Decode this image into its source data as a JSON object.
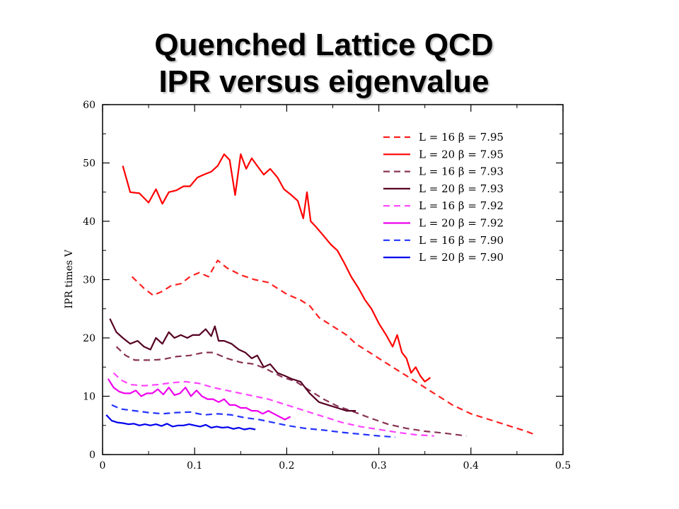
{
  "slide": {
    "title_line1": "Quenched Lattice QCD",
    "title_line2": "IPR versus eigenvalue"
  },
  "chart_data": {
    "type": "line",
    "title": "",
    "xlabel": "",
    "ylabel": "IPR times V",
    "xlim": [
      0,
      0.5
    ],
    "ylim": [
      0,
      60
    ],
    "xticks": [
      0,
      0.1,
      0.2,
      0.3,
      0.4,
      0.5
    ],
    "xtick_labels": [
      "0",
      "0.1",
      "0.2",
      "0.3",
      "0.4",
      "0.5"
    ],
    "yticks": [
      0,
      10,
      20,
      30,
      40,
      50,
      60
    ],
    "ytick_labels": [
      "0",
      "10",
      "20",
      "30",
      "40",
      "50",
      "60"
    ],
    "legend_position": "top-right",
    "series": [
      {
        "name": "L = 16  β = 7.95",
        "color": "#ff2020",
        "dashed": true,
        "x": [
          0.032,
          0.045,
          0.055,
          0.065,
          0.075,
          0.085,
          0.095,
          0.105,
          0.115,
          0.125,
          0.135,
          0.15,
          0.165,
          0.18,
          0.19,
          0.2,
          0.215,
          0.225,
          0.235,
          0.25,
          0.265,
          0.275,
          0.29,
          0.3,
          0.315,
          0.33,
          0.345,
          0.36,
          0.38,
          0.4,
          0.42,
          0.44,
          0.46,
          0.468
        ],
        "y": [
          30.5,
          28.5,
          27.3,
          28,
          29,
          29.3,
          30.5,
          31.2,
          30.5,
          33.3,
          32,
          30.8,
          30,
          29.5,
          28.5,
          27.5,
          26.5,
          25.5,
          23.5,
          22,
          20.5,
          19,
          17.5,
          16.5,
          15,
          13.5,
          12,
          10.5,
          8.5,
          7,
          6,
          5,
          4,
          3.5
        ]
      },
      {
        "name": "L = 20  β = 7.95",
        "color": "#ff0000",
        "dashed": false,
        "x": [
          0.022,
          0.03,
          0.04,
          0.05,
          0.058,
          0.065,
          0.072,
          0.08,
          0.088,
          0.095,
          0.103,
          0.11,
          0.118,
          0.125,
          0.132,
          0.138,
          0.144,
          0.15,
          0.156,
          0.162,
          0.168,
          0.175,
          0.182,
          0.19,
          0.197,
          0.205,
          0.212,
          0.218,
          0.222,
          0.226,
          0.232,
          0.24,
          0.248,
          0.255,
          0.262,
          0.27,
          0.278,
          0.285,
          0.292,
          0.3,
          0.308,
          0.315,
          0.32,
          0.325,
          0.33,
          0.335,
          0.34,
          0.345,
          0.35,
          0.356
        ],
        "y": [
          49.5,
          45,
          44.8,
          43.2,
          45.5,
          43,
          45,
          45.3,
          46,
          46,
          47.5,
          48,
          48.5,
          49.5,
          51.5,
          50.5,
          44.5,
          51.5,
          49,
          50.8,
          49.5,
          48,
          49,
          47.5,
          45.5,
          44.5,
          43.5,
          40.5,
          45,
          40,
          39,
          37.5,
          36,
          35,
          33,
          30.5,
          28.5,
          26.5,
          25,
          22.5,
          20.5,
          18.5,
          20.5,
          17.5,
          16.5,
          14,
          15,
          13.5,
          12.5,
          13.2
        ]
      },
      {
        "name": "L = 16  β = 7.93",
        "color": "#883355",
        "dashed": true,
        "x": [
          0.015,
          0.025,
          0.035,
          0.05,
          0.065,
          0.08,
          0.095,
          0.11,
          0.12,
          0.135,
          0.15,
          0.165,
          0.18,
          0.195,
          0.21,
          0.225,
          0.24,
          0.255,
          0.27,
          0.29,
          0.31,
          0.33,
          0.35,
          0.37,
          0.39,
          0.395
        ],
        "y": [
          18.5,
          17,
          16.2,
          16.2,
          16.3,
          16.8,
          17,
          17.5,
          17.5,
          16.5,
          15.8,
          15.5,
          14.5,
          13.3,
          12.5,
          11,
          9.5,
          8.3,
          7.5,
          6.3,
          5.2,
          4.5,
          4,
          3.7,
          3.3,
          3.2
        ]
      },
      {
        "name": "L = 20  β = 7.93",
        "color": "#550022",
        "dashed": false,
        "x": [
          0.008,
          0.015,
          0.022,
          0.03,
          0.038,
          0.045,
          0.052,
          0.058,
          0.065,
          0.072,
          0.078,
          0.085,
          0.092,
          0.098,
          0.105,
          0.112,
          0.118,
          0.122,
          0.126,
          0.132,
          0.14,
          0.148,
          0.155,
          0.162,
          0.168,
          0.175,
          0.182,
          0.19,
          0.198,
          0.205,
          0.215,
          0.225,
          0.235,
          0.245,
          0.255,
          0.265,
          0.275
        ],
        "y": [
          23.3,
          21,
          20,
          19,
          19.5,
          18.5,
          18,
          20,
          19,
          21,
          20,
          20.5,
          20,
          20.5,
          20.5,
          21.5,
          20.3,
          22,
          19.5,
          19.5,
          19,
          18,
          17.5,
          16.5,
          17,
          15,
          15.5,
          14,
          13.5,
          13,
          12.5,
          10.5,
          9,
          8.5,
          8,
          7.5,
          7.5
        ]
      },
      {
        "name": "L = 16  β = 7.92",
        "color": "#ff44ff",
        "dashed": true,
        "x": [
          0.012,
          0.02,
          0.03,
          0.045,
          0.06,
          0.075,
          0.09,
          0.105,
          0.12,
          0.135,
          0.15,
          0.165,
          0.18,
          0.2,
          0.22,
          0.24,
          0.26,
          0.28,
          0.3,
          0.32,
          0.34,
          0.36
        ],
        "y": [
          14,
          12.8,
          12,
          11.8,
          12,
          12.3,
          12.5,
          12.2,
          11.5,
          11,
          10.5,
          10,
          9.5,
          8.5,
          7.5,
          6.5,
          5.5,
          4.8,
          4.3,
          3.8,
          3.4,
          3.2
        ]
      },
      {
        "name": "L = 20  β = 7.92",
        "color": "#ee00ee",
        "dashed": false,
        "x": [
          0.006,
          0.012,
          0.018,
          0.024,
          0.03,
          0.036,
          0.042,
          0.048,
          0.054,
          0.06,
          0.066,
          0.072,
          0.078,
          0.084,
          0.09,
          0.096,
          0.102,
          0.108,
          0.114,
          0.12,
          0.126,
          0.132,
          0.138,
          0.144,
          0.15,
          0.156,
          0.162,
          0.168,
          0.174,
          0.18,
          0.186,
          0.192,
          0.198,
          0.204
        ],
        "y": [
          13,
          11.5,
          10.8,
          10.5,
          10.5,
          11,
          10,
          10.5,
          10.5,
          11.2,
          10.3,
          11.5,
          10.2,
          10.5,
          11.5,
          10,
          11,
          10,
          9.5,
          9.5,
          9,
          9.5,
          8.5,
          8.5,
          8,
          8,
          7.5,
          7.5,
          7,
          7.5,
          7,
          6.5,
          6,
          6.5
        ]
      },
      {
        "name": "L = 16  β = 7.90",
        "color": "#2233ff",
        "dashed": true,
        "x": [
          0.01,
          0.02,
          0.035,
          0.05,
          0.065,
          0.08,
          0.095,
          0.11,
          0.125,
          0.14,
          0.155,
          0.17,
          0.185,
          0.2,
          0.22,
          0.24,
          0.26,
          0.28,
          0.3,
          0.318
        ],
        "y": [
          8.5,
          7.8,
          7.5,
          7.2,
          7,
          7.2,
          7.3,
          6.8,
          7,
          6.8,
          6.3,
          6,
          5.5,
          5,
          4.5,
          4.2,
          3.8,
          3.5,
          3.2,
          3
        ]
      },
      {
        "name": "L = 20  β = 7.90",
        "color": "#0000ee",
        "dashed": false,
        "x": [
          0.004,
          0.01,
          0.016,
          0.022,
          0.028,
          0.034,
          0.04,
          0.046,
          0.052,
          0.058,
          0.064,
          0.07,
          0.076,
          0.082,
          0.088,
          0.094,
          0.1,
          0.106,
          0.112,
          0.118,
          0.124,
          0.13,
          0.136,
          0.142,
          0.148,
          0.154,
          0.16,
          0.166
        ],
        "y": [
          6.8,
          5.8,
          5.5,
          5.4,
          5.2,
          5.3,
          5,
          5.2,
          5,
          5.2,
          4.9,
          5.3,
          4.8,
          5,
          5,
          5.2,
          5,
          4.8,
          5.1,
          4.6,
          4.8,
          4.6,
          4.7,
          4.4,
          4.6,
          4.3,
          4.5,
          4.3
        ]
      }
    ]
  }
}
